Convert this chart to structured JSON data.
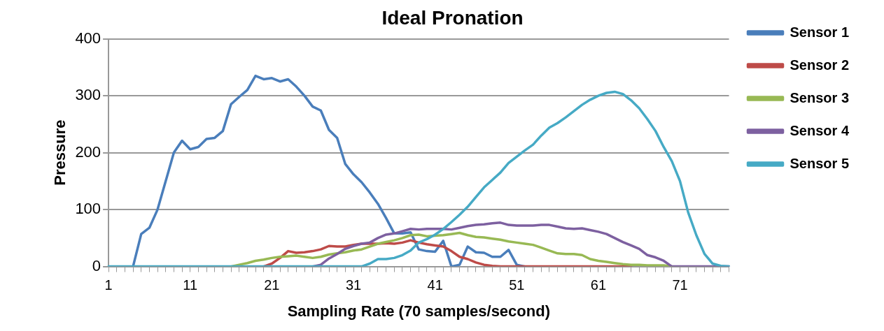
{
  "chart_data": {
    "type": "line",
    "title": "Ideal Pronation",
    "xlabel": "Sampling Rate (70 samples/second)",
    "ylabel": "Pressure",
    "categories": [
      "1",
      null,
      null,
      null,
      null,
      null,
      null,
      null,
      null,
      null,
      "11",
      null,
      null,
      null,
      null,
      null,
      null,
      null,
      null,
      null,
      "21",
      null,
      null,
      null,
      null,
      null,
      null,
      null,
      null,
      null,
      "31",
      null,
      null,
      null,
      null,
      null,
      null,
      null,
      null,
      null,
      "41",
      null,
      null,
      null,
      null,
      null,
      null,
      null,
      null,
      null,
      "51",
      null,
      null,
      null,
      null,
      null,
      null,
      null,
      null,
      null,
      "61",
      null,
      null,
      null,
      null,
      null,
      null,
      null,
      null,
      null,
      "71",
      null,
      null,
      null,
      null,
      null,
      null
    ],
    "ylim": [
      0,
      400
    ],
    "yticks": [
      0,
      100,
      200,
      300,
      400
    ],
    "grid": "y",
    "legend": "right",
    "marker": "none",
    "line_style": "solid",
    "series": [
      {
        "name": "Sensor 1",
        "color": "#4a7ebb",
        "values": [
          null,
          null,
          null,
          0,
          57,
          68,
          100,
          150,
          200,
          221,
          206,
          210,
          224,
          226,
          238,
          285,
          298,
          310,
          335,
          329,
          331,
          325,
          329,
          316,
          300,
          281,
          274,
          240,
          226,
          180,
          162,
          148,
          130,
          110,
          85,
          58,
          58,
          60,
          30,
          27,
          26,
          45,
          0,
          3,
          35,
          25,
          24,
          17,
          17,
          29,
          3,
          0,
          null,
          null,
          null,
          null,
          null,
          null,
          null,
          null,
          null,
          null,
          null,
          null,
          null,
          null,
          null,
          null,
          null,
          null,
          null,
          null,
          null,
          null,
          null,
          null,
          null
        ]
      },
      {
        "name": "Sensor 2",
        "color": "#be4b48",
        "values": [
          null,
          null,
          null,
          null,
          null,
          null,
          null,
          null,
          null,
          null,
          null,
          null,
          null,
          null,
          null,
          null,
          null,
          null,
          null,
          0,
          5,
          15,
          27,
          24,
          25,
          27,
          30,
          36,
          35,
          35,
          38,
          40,
          40,
          40,
          41,
          40,
          42,
          46,
          42,
          39,
          37,
          35,
          27,
          17,
          13,
          7,
          3,
          1,
          0,
          0,
          0,
          0,
          0,
          0,
          0,
          0,
          0,
          0,
          0,
          0,
          0,
          0,
          0,
          0,
          0,
          null,
          null,
          null,
          null,
          null,
          null,
          null,
          null,
          null,
          null,
          null,
          null
        ]
      },
      {
        "name": "Sensor 3",
        "color": "#98b954",
        "values": [
          null,
          null,
          null,
          null,
          null,
          null,
          null,
          null,
          null,
          null,
          null,
          null,
          null,
          null,
          null,
          0,
          3,
          6,
          10,
          12,
          15,
          17,
          18,
          19,
          17,
          15,
          17,
          21,
          23,
          25,
          28,
          30,
          35,
          40,
          43,
          46,
          50,
          55,
          56,
          53,
          54,
          55,
          57,
          59,
          55,
          52,
          51,
          49,
          47,
          44,
          42,
          40,
          38,
          33,
          28,
          23,
          22,
          22,
          20,
          13,
          10,
          8,
          6,
          4,
          3,
          3,
          2,
          2,
          2,
          0,
          null,
          null,
          null,
          null,
          null,
          null,
          null
        ]
      },
      {
        "name": "Sensor 4",
        "color": "#7d60a0",
        "values": [
          null,
          null,
          null,
          null,
          null,
          null,
          null,
          null,
          null,
          null,
          null,
          null,
          null,
          null,
          null,
          null,
          null,
          null,
          null,
          null,
          null,
          null,
          null,
          null,
          null,
          0,
          3,
          14,
          22,
          31,
          36,
          40,
          42,
          50,
          56,
          58,
          62,
          66,
          65,
          66,
          66,
          66,
          65,
          68,
          71,
          73,
          74,
          76,
          77,
          73,
          72,
          72,
          72,
          73,
          73,
          70,
          67,
          66,
          67,
          64,
          61,
          57,
          50,
          43,
          37,
          31,
          20,
          16,
          10,
          0,
          0,
          0,
          0,
          0,
          0,
          0,
          0
        ]
      },
      {
        "name": "Sensor 5",
        "color": "#46aac5",
        "values": [
          0,
          0,
          0,
          0,
          0,
          0,
          0,
          0,
          0,
          0,
          0,
          0,
          0,
          0,
          0,
          0,
          0,
          0,
          0,
          0,
          0,
          0,
          0,
          0,
          0,
          0,
          0,
          0,
          0,
          0,
          0,
          0,
          5,
          13,
          13,
          15,
          20,
          28,
          42,
          48,
          56,
          66,
          78,
          91,
          105,
          122,
          139,
          152,
          165,
          182,
          193,
          204,
          214,
          230,
          244,
          252,
          262,
          273,
          284,
          293,
          300,
          305,
          307,
          303,
          292,
          278,
          259,
          238,
          210,
          185,
          150,
          95,
          55,
          22,
          5,
          1,
          0
        ]
      }
    ]
  }
}
